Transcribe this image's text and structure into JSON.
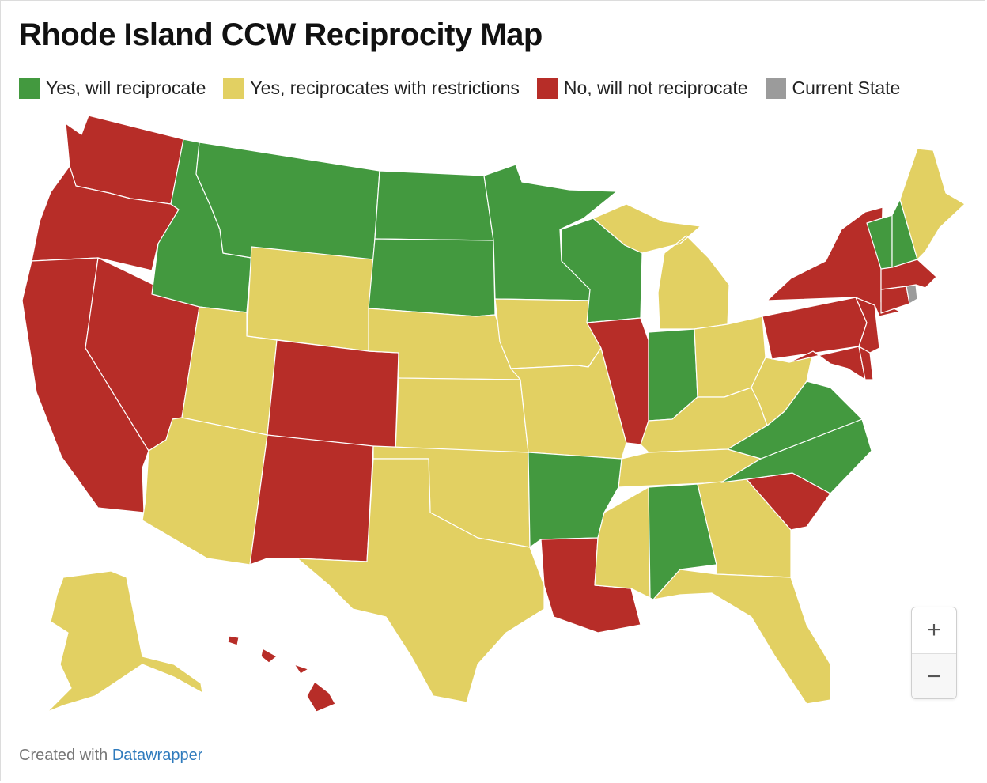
{
  "title": "Rhode Island CCW Reciprocity Map",
  "colors": {
    "yes": "#43993f",
    "restricted": "#e2d062",
    "no": "#b72d28",
    "current": "#9b9b9b",
    "border": "#ffffff"
  },
  "legend": [
    {
      "label": "Yes, will reciprocate",
      "category": "yes"
    },
    {
      "label": "Yes, reciprocates with restrictions",
      "category": "restricted"
    },
    {
      "label": "No, will not reciprocate",
      "category": "no"
    },
    {
      "label": "Current State",
      "category": "current"
    }
  ],
  "states": {
    "WA": "no",
    "OR": "no",
    "CA": "no",
    "NV": "no",
    "HI": "no",
    "CO": "no",
    "NM": "no",
    "IL": "no",
    "LA": "no",
    "SC": "no",
    "MD": "no",
    "DE": "no",
    "NJ": "no",
    "PA": "no",
    "NY": "no",
    "CT": "no",
    "MA": "no",
    "RI": "current",
    "ID": "yes",
    "MT": "yes",
    "ND": "yes",
    "SD": "yes",
    "MN": "yes",
    "WI": "yes",
    "IN": "yes",
    "AR": "yes",
    "AL": "yes",
    "VA": "yes",
    "NC": "yes",
    "VT": "yes",
    "NH": "yes",
    "AK": "restricted",
    "AZ": "restricted",
    "UT": "restricted",
    "WY": "restricted",
    "NE": "restricted",
    "KS": "restricted",
    "OK": "restricted",
    "TX": "restricted",
    "IA": "restricted",
    "MO": "restricted",
    "MI": "restricted",
    "OH": "restricted",
    "KY": "restricted",
    "TN": "restricted",
    "MS": "restricted",
    "GA": "restricted",
    "FL": "restricted",
    "WV": "restricted",
    "ME": "restricted"
  },
  "zoom": {
    "in_label": "+",
    "out_label": "−"
  },
  "footer": {
    "prefix": "Created with ",
    "link": "Datawrapper"
  }
}
